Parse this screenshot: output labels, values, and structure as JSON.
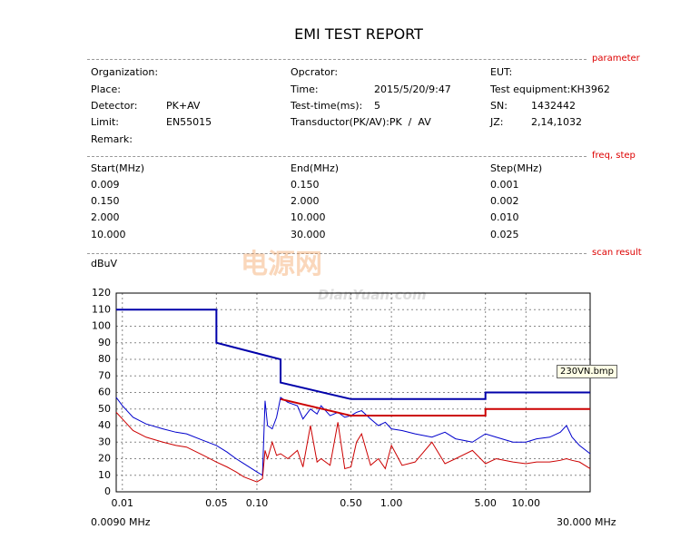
{
  "report": {
    "title": "EMI TEST REPORT",
    "parameter": {
      "marker": "parameter",
      "columns": [
        [
          {
            "label": "Organization:"
          },
          {
            "label": "Place:"
          },
          {
            "label": "Detector:",
            "value": "PK+AV"
          },
          {
            "label": "Limit:",
            "value": "EN55015"
          },
          {
            "label": "Remark:"
          }
        ],
        [
          {
            "label": "Opcrator:"
          },
          {
            "label": "Time:",
            "value": "2015/5/20/9:47"
          },
          {
            "label": "Test-time(ms):",
            "value": "5"
          },
          {
            "label": "Transductor(PK/AV):",
            "value": "PK  /  AV"
          }
        ],
        [
          {
            "label": "EUT:"
          },
          {
            "label": "Test equipment:KH3962"
          },
          {
            "label": "SN:",
            "value": "1432442"
          },
          {
            "label": "JZ:",
            "value": "2,14,1032"
          }
        ]
      ]
    },
    "freq_step": {
      "marker": "freq, step",
      "header": [
        "Start(MHz)",
        "End(MHz)",
        "Step(MHz)"
      ],
      "rows": [
        [
          "0.009",
          "0.150",
          "0.001"
        ],
        [
          "0.150",
          "2.000",
          "0.002"
        ],
        [
          "2.000",
          "10.000",
          "0.010"
        ],
        [
          "10.000",
          "30.000",
          "0.025"
        ]
      ]
    },
    "scan_result_marker": "scan result",
    "watermark": [
      "电源网",
      "DianYuan.com"
    ]
  },
  "chart_data": {
    "type": "line",
    "y_label": "dBuV",
    "x_range_labels": [
      "0.0090 MHz",
      "30.000 MHz"
    ],
    "file_label": "230VN.bmp",
    "xscale": "log",
    "xlim": [
      0.009,
      30
    ],
    "ylim": [
      0,
      120
    ],
    "xticks": [
      0.01,
      0.05,
      {
        "value": 0.1,
        "label": "0.10"
      },
      {
        "value": 0.5,
        "label": "0.50"
      },
      {
        "value": 1,
        "label": "1.00"
      },
      {
        "value": 5,
        "label": "5.00"
      },
      {
        "value": 10,
        "label": "10.00"
      }
    ],
    "yticks": [
      0,
      10,
      20,
      30,
      40,
      50,
      60,
      70,
      80,
      90,
      100,
      110,
      120
    ],
    "grid": true,
    "series": [
      {
        "color": "#0000aa",
        "width": 2,
        "x": [
          0.009,
          0.05,
          0.05,
          0.15,
          0.15,
          0.5,
          5,
          5,
          30
        ],
        "values": [
          110,
          110,
          90,
          80,
          66,
          56,
          56,
          60,
          60
        ]
      },
      {
        "color": "#cc0000",
        "width": 2,
        "x": [
          0.15,
          0.5,
          5,
          5,
          30
        ],
        "values": [
          56,
          46,
          46,
          50,
          50
        ]
      },
      {
        "color": "#0000cc",
        "width": 1,
        "x": [
          0.009,
          0.01,
          0.012,
          0.015,
          0.02,
          0.025,
          0.03,
          0.04,
          0.05,
          0.06,
          0.07,
          0.08,
          0.1,
          0.11,
          0.115,
          0.12,
          0.13,
          0.14,
          0.15,
          0.17,
          0.2,
          0.22,
          0.25,
          0.28,
          0.3,
          0.35,
          0.4,
          0.45,
          0.5,
          0.55,
          0.6,
          0.7,
          0.8,
          0.9,
          1,
          1.2,
          1.5,
          2,
          2.5,
          3,
          4,
          5,
          6,
          8,
          10,
          12,
          15,
          18,
          20,
          22,
          25,
          30
        ],
        "values": [
          57,
          52,
          45,
          41,
          38,
          36,
          35,
          31,
          28,
          24,
          20,
          17,
          12,
          10,
          55,
          40,
          38,
          45,
          57,
          54,
          52,
          44,
          50,
          47,
          52,
          46,
          48,
          45,
          46,
          48,
          49,
          44,
          40,
          42,
          38,
          37,
          35,
          33,
          36,
          32,
          30,
          35,
          33,
          30,
          30,
          32,
          33,
          36,
          40,
          33,
          28,
          23
        ]
      },
      {
        "color": "#cc0000",
        "width": 1,
        "x": [
          0.009,
          0.01,
          0.012,
          0.015,
          0.02,
          0.025,
          0.03,
          0.04,
          0.05,
          0.06,
          0.07,
          0.08,
          0.1,
          0.11,
          0.115,
          0.12,
          0.13,
          0.14,
          0.15,
          0.17,
          0.2,
          0.22,
          0.25,
          0.28,
          0.3,
          0.35,
          0.4,
          0.45,
          0.5,
          0.55,
          0.6,
          0.7,
          0.8,
          0.9,
          1,
          1.2,
          1.5,
          2,
          2.5,
          3,
          4,
          5,
          6,
          8,
          10,
          12,
          15,
          18,
          20,
          22,
          25,
          30
        ],
        "values": [
          48,
          44,
          37,
          33,
          30,
          28,
          27,
          22,
          18,
          15,
          12,
          9,
          6,
          8,
          25,
          20,
          30,
          22,
          23,
          20,
          25,
          15,
          40,
          18,
          20,
          16,
          42,
          14,
          15,
          30,
          35,
          16,
          20,
          14,
          28,
          16,
          18,
          30,
          17,
          20,
          25,
          17,
          20,
          18,
          17,
          18,
          18,
          19,
          20,
          19,
          18,
          14
        ]
      }
    ]
  }
}
